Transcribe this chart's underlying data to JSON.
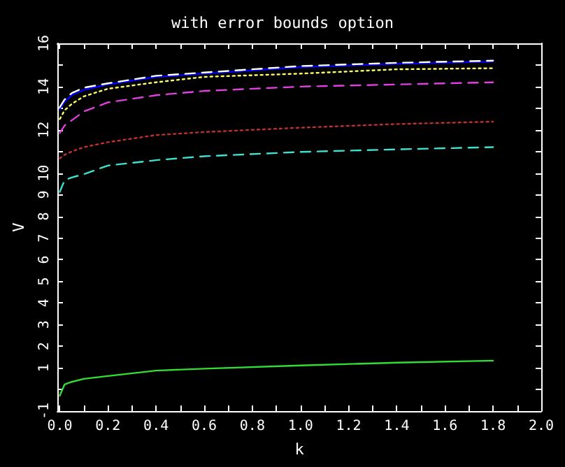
{
  "chart_data": {
    "type": "line",
    "title": "with error bounds option",
    "xlabel": "k",
    "ylabel": "V",
    "x": [
      0,
      0.02,
      0.05,
      0.1,
      0.2,
      0.4,
      0.6,
      1.0,
      1.4,
      1.8
    ],
    "series": [
      {
        "color": "#0000ff",
        "line_style": "solid",
        "values": [
          12.96,
          13.3,
          13.6,
          13.85,
          14.1,
          14.45,
          14.6,
          14.9,
          15.05,
          15.16
        ]
      },
      {
        "color": "#ffffff",
        "line_style": "dashed",
        "values": [
          13.05,
          13.4,
          13.7,
          13.95,
          14.15,
          14.5,
          14.65,
          14.95,
          15.1,
          15.2
        ]
      },
      {
        "color": "#ffff66",
        "line_style": "dotted",
        "values": [
          12.5,
          12.9,
          13.2,
          13.55,
          13.9,
          14.2,
          14.45,
          14.6,
          14.8,
          14.85
        ]
      },
      {
        "color": "#e040e0",
        "line_style": "dashed",
        "values": [
          11.86,
          12.2,
          12.44,
          12.85,
          13.27,
          13.6,
          13.8,
          14.0,
          14.1,
          14.2
        ]
      },
      {
        "color": "#c03030",
        "line_style": "dotted",
        "values": [
          10.68,
          10.85,
          11.0,
          11.2,
          11.43,
          11.76,
          11.9,
          12.1,
          12.27,
          12.38
        ]
      },
      {
        "color": "#40e0d0",
        "line_style": "dashed",
        "values": [
          9.13,
          9.67,
          9.8,
          9.95,
          10.35,
          10.6,
          10.78,
          10.98,
          11.1,
          11.2
        ]
      },
      {
        "color": "#33dd33",
        "line_style": "solid",
        "values": [
          -0.29,
          0.23,
          0.35,
          0.49,
          0.62,
          0.87,
          0.96,
          1.11,
          1.24,
          1.33
        ]
      }
    ],
    "xlim": [
      -0.01,
      2.0
    ],
    "xticks": [
      {
        "value": 0,
        "label": "0.0"
      },
      {
        "value": 0.1,
        "label": null
      },
      0.2,
      {
        "value": 0.3,
        "label": null
      },
      0.4,
      {
        "value": 0.5,
        "label": null
      },
      0.6,
      {
        "value": 0.7,
        "label": null
      },
      0.8,
      {
        "value": 0.9,
        "label": null
      },
      {
        "value": 1.0,
        "label": "1.0"
      },
      {
        "value": 1.1,
        "label": null
      },
      1.2,
      {
        "value": 1.3,
        "label": null
      },
      1.4,
      {
        "value": 1.5,
        "label": null
      },
      1.6,
      {
        "value": 1.7,
        "label": null
      },
      1.8,
      {
        "value": 1.9,
        "label": null
      },
      {
        "value": 2.0,
        "label": "2.0"
      }
    ],
    "ylim": [
      -1,
      16
    ],
    "yticks": [
      -1,
      {
        "value": 0,
        "label": null
      },
      1,
      2,
      3,
      4,
      5,
      6,
      7,
      8,
      9,
      10,
      {
        "value": 11,
        "label": null
      },
      12,
      {
        "value": 13,
        "label": null
      },
      14,
      {
        "value": 15,
        "label": null
      },
      16
    ],
    "grid": false,
    "marker": "none"
  }
}
